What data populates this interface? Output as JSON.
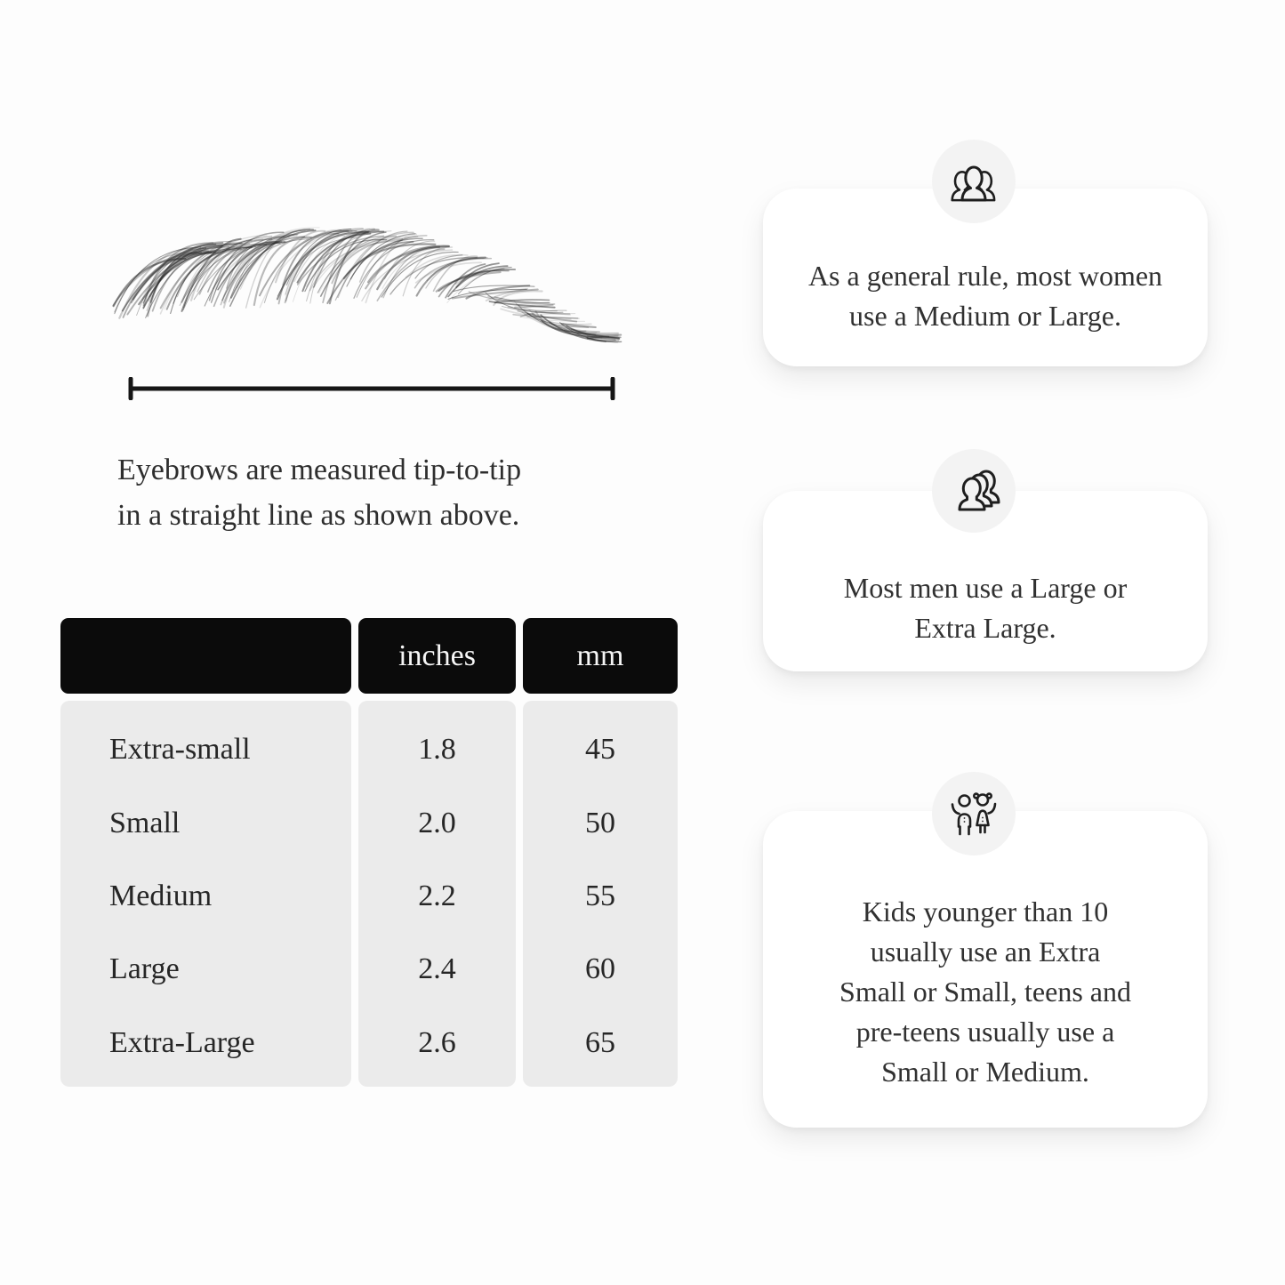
{
  "diagram": {
    "caption_lines": [
      "Eyebrows are measured tip-to-tip",
      "in a straight line as shown above."
    ]
  },
  "size_table": {
    "col_headers": [
      "",
      "inches",
      "mm"
    ],
    "rows": [
      {
        "size": "Extra-small",
        "inches": "1.8",
        "mm": "45"
      },
      {
        "size": "Small",
        "inches": "2.0",
        "mm": "50"
      },
      {
        "size": "Medium",
        "inches": "2.2",
        "mm": "55"
      },
      {
        "size": "Large",
        "inches": "2.4",
        "mm": "60"
      },
      {
        "size": "Extra-Large",
        "inches": "2.6",
        "mm": "65"
      }
    ]
  },
  "cards": [
    {
      "icon": "women-group-icon",
      "lines": [
        "As a general rule, most women",
        "use a Medium or Large."
      ]
    },
    {
      "icon": "men-group-icon",
      "lines": [
        "Most men use a Large or",
        "Extra Large."
      ]
    },
    {
      "icon": "kids-icon",
      "lines": [
        "Kids younger than 10",
        "usually use an Extra",
        "Small or Small, teens and",
        "pre-teens usually use a",
        "Small or Medium."
      ]
    }
  ],
  "colors": {
    "page_bg": "#fdfdfd",
    "table_header_bg": "#0b0b0b",
    "table_header_text": "#f6f6f6",
    "table_body_bg": "#ebebeb",
    "text": "#2e2e2e",
    "card_bg": "#ffffff",
    "icon_circle_bg": "#f3f3f3",
    "measure_line": "#161616"
  }
}
